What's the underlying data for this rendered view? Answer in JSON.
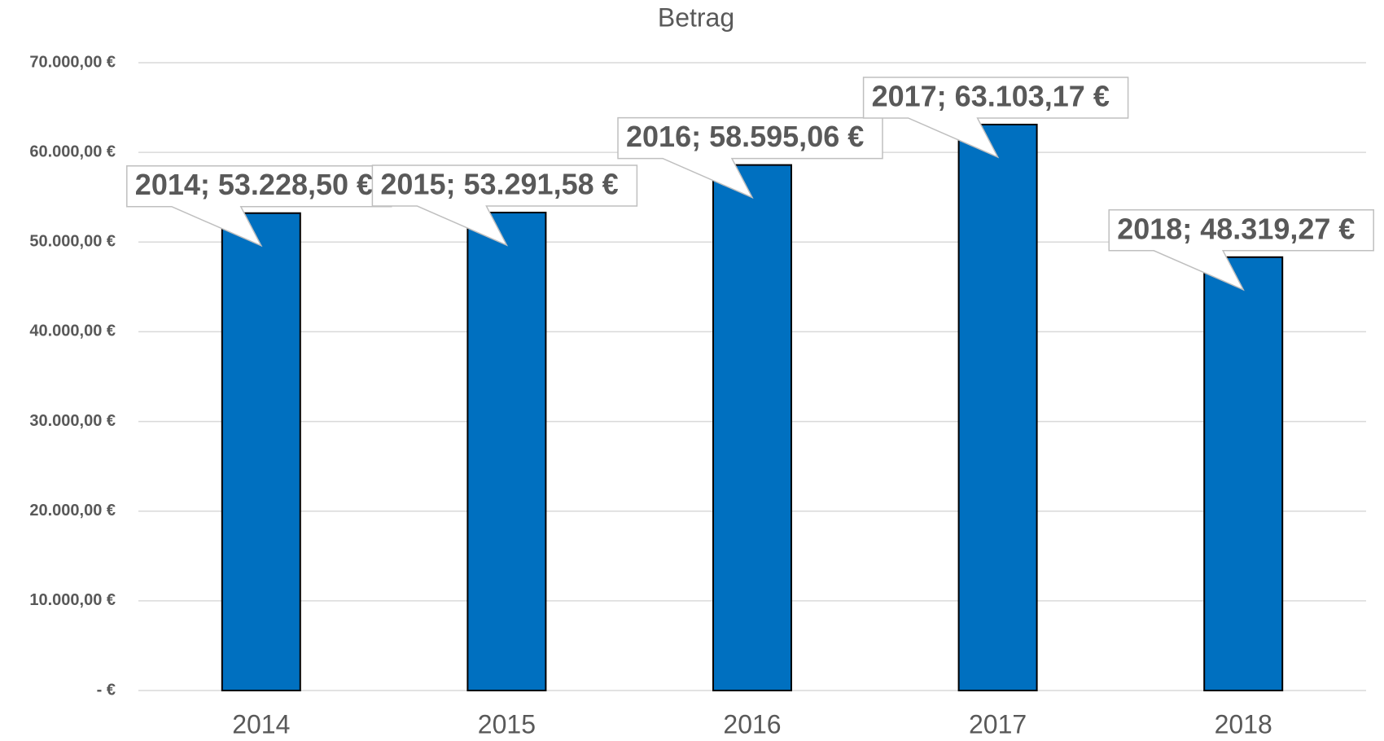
{
  "chart_data": {
    "type": "bar",
    "title": "Betrag",
    "categories": [
      "2014",
      "2015",
      "2016",
      "2017",
      "2018"
    ],
    "values": [
      53228.5,
      53291.58,
      58595.06,
      63103.17,
      48319.27
    ],
    "value_labels": [
      "2014;  53.228,50 €",
      "2015;  53.291,58 €",
      "2016;  58.595,06 €",
      "2017;  63.103,17 €",
      "2018;  48.319,27 €"
    ],
    "color": "#0070c0",
    "ylim": [
      0,
      70000
    ],
    "yticks": [
      {
        "value": 0,
        "label": "-  €"
      },
      {
        "value": 10000,
        "label": "10.000,00 €"
      },
      {
        "value": 20000,
        "label": "20.000,00 €"
      },
      {
        "value": 30000,
        "label": "30.000,00 €"
      },
      {
        "value": 40000,
        "label": "40.000,00 €"
      },
      {
        "value": 50000,
        "label": "50.000,00 €"
      },
      {
        "value": 60000,
        "label": "60.000,00 €"
      },
      {
        "value": 70000,
        "label": "70.000,00 €"
      }
    ],
    "grid": true
  }
}
